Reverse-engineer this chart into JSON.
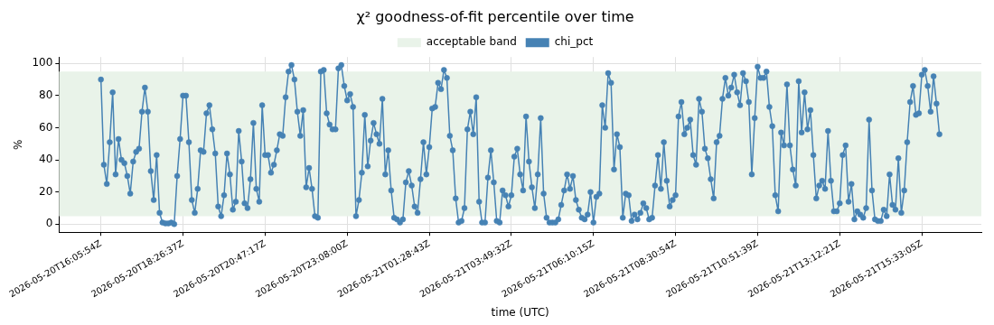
{
  "chart_data": {
    "type": "line",
    "title": "χ² goodness-of-fit percentile over time",
    "xlabel": "time (UTC)",
    "ylabel": "%",
    "categories": [
      "2026-05-20T16:05:54Z",
      null,
      null,
      null,
      null,
      null,
      null,
      null,
      null,
      null,
      null,
      null,
      null,
      null,
      null,
      null,
      null,
      null,
      null,
      null,
      null,
      null,
      null,
      null,
      null,
      null,
      null,
      null,
      "2026-05-20T18:26:37Z",
      null,
      null,
      null,
      null,
      null,
      null,
      null,
      null,
      null,
      null,
      null,
      null,
      null,
      null,
      null,
      null,
      null,
      null,
      null,
      null,
      null,
      null,
      null,
      null,
      null,
      null,
      null,
      "2026-05-20T20:47:17Z",
      null,
      null,
      null,
      null,
      null,
      null,
      null,
      null,
      null,
      null,
      null,
      null,
      null,
      null,
      null,
      null,
      null,
      null,
      null,
      null,
      null,
      null,
      null,
      null,
      null,
      null,
      null,
      "2026-05-20T23:08:00Z",
      null,
      null,
      null,
      null,
      null,
      null,
      null,
      null,
      null,
      null,
      null,
      null,
      null,
      null,
      null,
      null,
      null,
      null,
      null,
      null,
      null,
      null,
      null,
      null,
      null,
      null,
      null,
      "2026-05-21T01:28:43Z",
      null,
      null,
      null,
      null,
      null,
      null,
      null,
      null,
      null,
      null,
      null,
      null,
      null,
      null,
      null,
      null,
      null,
      null,
      null,
      null,
      null,
      null,
      null,
      null,
      null,
      null,
      null,
      "2026-05-21T03:49:32Z",
      null,
      null,
      null,
      null,
      null,
      null,
      null,
      null,
      null,
      null,
      null,
      null,
      null,
      null,
      null,
      null,
      null,
      null,
      null,
      null,
      null,
      null,
      null,
      null,
      null,
      null,
      null,
      "2026-05-21T06:10:15Z",
      null,
      null,
      null,
      null,
      null,
      null,
      null,
      null,
      null,
      null,
      null,
      null,
      null,
      null,
      null,
      null,
      null,
      null,
      null,
      null,
      null,
      null,
      null,
      null,
      null,
      null,
      null,
      "2026-05-21T08:30:54Z",
      null,
      null,
      null,
      null,
      null,
      null,
      null,
      null,
      null,
      null,
      null,
      null,
      null,
      null,
      null,
      null,
      null,
      null,
      null,
      null,
      null,
      null,
      null,
      null,
      null,
      null,
      null,
      "2026-05-21T10:51:39Z",
      null,
      null,
      null,
      null,
      null,
      null,
      null,
      null,
      null,
      null,
      null,
      null,
      null,
      null,
      null,
      null,
      null,
      null,
      null,
      null,
      null,
      null,
      null,
      null,
      null,
      null,
      null,
      "2026-05-21T13:12:21Z",
      null,
      null,
      null,
      null,
      null,
      null,
      null,
      null,
      null,
      null,
      null,
      null,
      null,
      null,
      null,
      null,
      null,
      null,
      null,
      null,
      null,
      null,
      null,
      null,
      null,
      null,
      null,
      "2026-05-21T15:33:05Z",
      null,
      null,
      null,
      null,
      null,
      null
    ],
    "series": [
      {
        "name": "chi_pct",
        "color": "#4682b4",
        "values": [
          90,
          37,
          25,
          51,
          82,
          31,
          53,
          40,
          38,
          30,
          19,
          39,
          45,
          47,
          70,
          85,
          70,
          33,
          15,
          43,
          7,
          1,
          0.5,
          0.5,
          1,
          0,
          30,
          53,
          80,
          80,
          51,
          15,
          7,
          22,
          46,
          45,
          69,
          74,
          59,
          44,
          11,
          5,
          18,
          44,
          31,
          9,
          14,
          58,
          39,
          13,
          10,
          28,
          63,
          22,
          14,
          74,
          43,
          43,
          32,
          37,
          46,
          56,
          55,
          79,
          95,
          99,
          90,
          70,
          55,
          71,
          23,
          35,
          22,
          5,
          4,
          95,
          96,
          69,
          62,
          59,
          59,
          97,
          99,
          86,
          77,
          81,
          73,
          5,
          15,
          32,
          68,
          36,
          52,
          63,
          56,
          50,
          78,
          31,
          46,
          21,
          4,
          3,
          1,
          3,
          26,
          33,
          24,
          11,
          7,
          28,
          51,
          31,
          48,
          72,
          73,
          88,
          84,
          96,
          91,
          55,
          46,
          16,
          1,
          2,
          10,
          59,
          70,
          56,
          79,
          14,
          1,
          1,
          29,
          46,
          26,
          2,
          1,
          21,
          18,
          11,
          18,
          42,
          47,
          31,
          21,
          67,
          39,
          23,
          10,
          31,
          66,
          19,
          4,
          1,
          1,
          1,
          3,
          12,
          21,
          31,
          22,
          30,
          15,
          9,
          4,
          3,
          6,
          20,
          1,
          17,
          19,
          74,
          60,
          94,
          88,
          34,
          56,
          48,
          4,
          19,
          18,
          2,
          6,
          3,
          7,
          13,
          10,
          3,
          4,
          24,
          43,
          22,
          51,
          27,
          11,
          15,
          18,
          67,
          76,
          56,
          60,
          65,
          43,
          37,
          78,
          70,
          47,
          41,
          28,
          16,
          51,
          55,
          78,
          91,
          80,
          85,
          93,
          82,
          74,
          94,
          89,
          76,
          31,
          66,
          98,
          91,
          91,
          95,
          73,
          61,
          18,
          8,
          57,
          49,
          87,
          49,
          34,
          24,
          89,
          57,
          82,
          59,
          71,
          43,
          16,
          24,
          27,
          22,
          58,
          27,
          8,
          8,
          13,
          43,
          49,
          14,
          25,
          3,
          8,
          6,
          4,
          10,
          65,
          21,
          3,
          2,
          2,
          9,
          5,
          31,
          12,
          9,
          41,
          7,
          21,
          51,
          76,
          86,
          68,
          69,
          93,
          96,
          86,
          70,
          92,
          75,
          56
        ]
      }
    ],
    "bands": [
      {
        "axis": "y",
        "from": 5,
        "to": 95,
        "label": "acceptable band",
        "color": "#e9f3e9"
      }
    ],
    "ylim": [
      -5,
      104
    ],
    "yticks": [
      0,
      20,
      40,
      60,
      80,
      100
    ],
    "grid": true,
    "legend": "top",
    "marker": "circle",
    "line_style": "solid"
  }
}
